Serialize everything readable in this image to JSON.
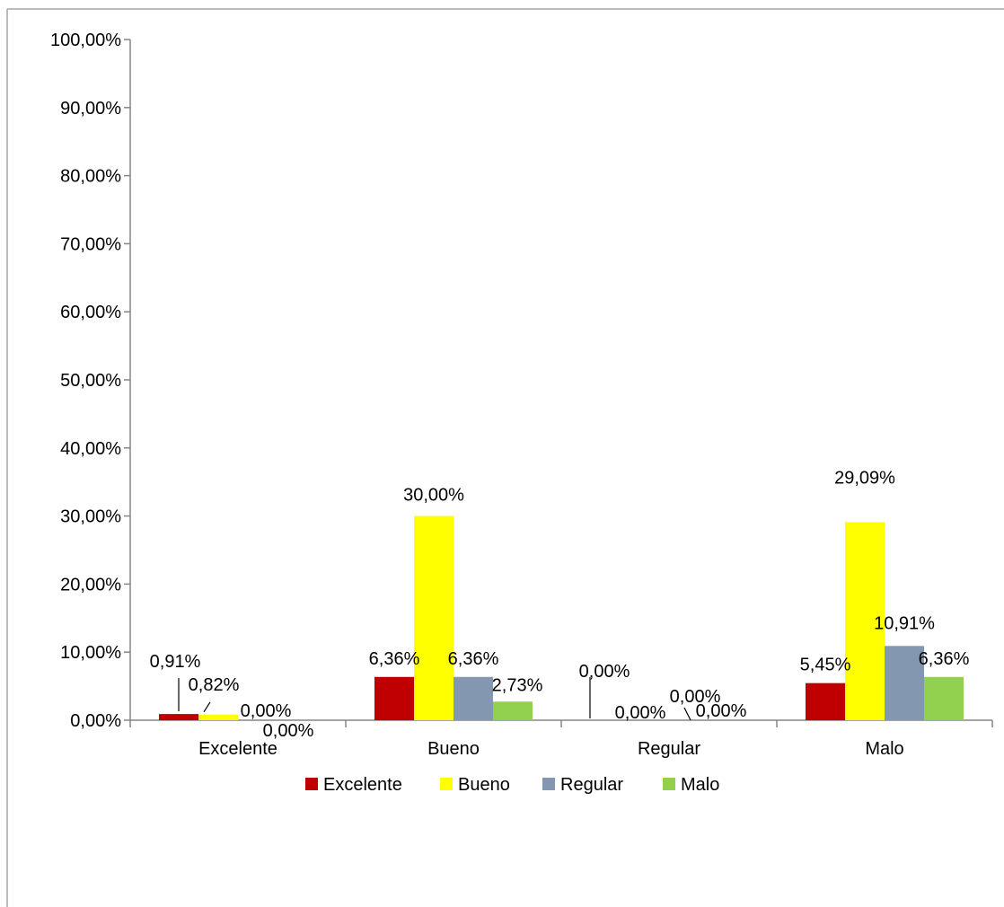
{
  "chart_data": {
    "type": "bar",
    "categories": [
      "Excelente",
      "Bueno",
      "Regular",
      "Malo"
    ],
    "series": [
      {
        "name": "Excelente",
        "color": "#C00000",
        "values": [
          0.91,
          6.36,
          0.0,
          5.45
        ],
        "labels": [
          "0,91%",
          "6,36%",
          "0,00%",
          "5,45%"
        ]
      },
      {
        "name": "Bueno",
        "color": "#FFFF00",
        "values": [
          0.82,
          30.0,
          0.0,
          29.09
        ],
        "labels": [
          "0,82%",
          "30,00%",
          "0,00%",
          "29,09%"
        ]
      },
      {
        "name": "Regular",
        "color": "#8497B0",
        "values": [
          0.0,
          6.36,
          0.0,
          10.91
        ],
        "labels": [
          "0,00%",
          "6,36%",
          "0,00%",
          "10,91%"
        ]
      },
      {
        "name": "Malo",
        "color": "#92D050",
        "values": [
          0.0,
          2.73,
          0.0,
          6.36
        ],
        "labels": [
          "0,00%",
          "2,73%",
          "0,00%",
          "6,36%"
        ]
      }
    ],
    "ylim": [
      0,
      100
    ],
    "y_ticks": [
      0,
      10,
      20,
      30,
      40,
      50,
      60,
      70,
      80,
      90,
      100
    ],
    "y_tick_labels": [
      "0,00%",
      "10,00%",
      "20,00%",
      "30,00%",
      "40,00%",
      "50,00%",
      "60,00%",
      "70,00%",
      "80,00%",
      "90,00%",
      "100,00%"
    ],
    "grid": false,
    "legend_position": "bottom"
  }
}
